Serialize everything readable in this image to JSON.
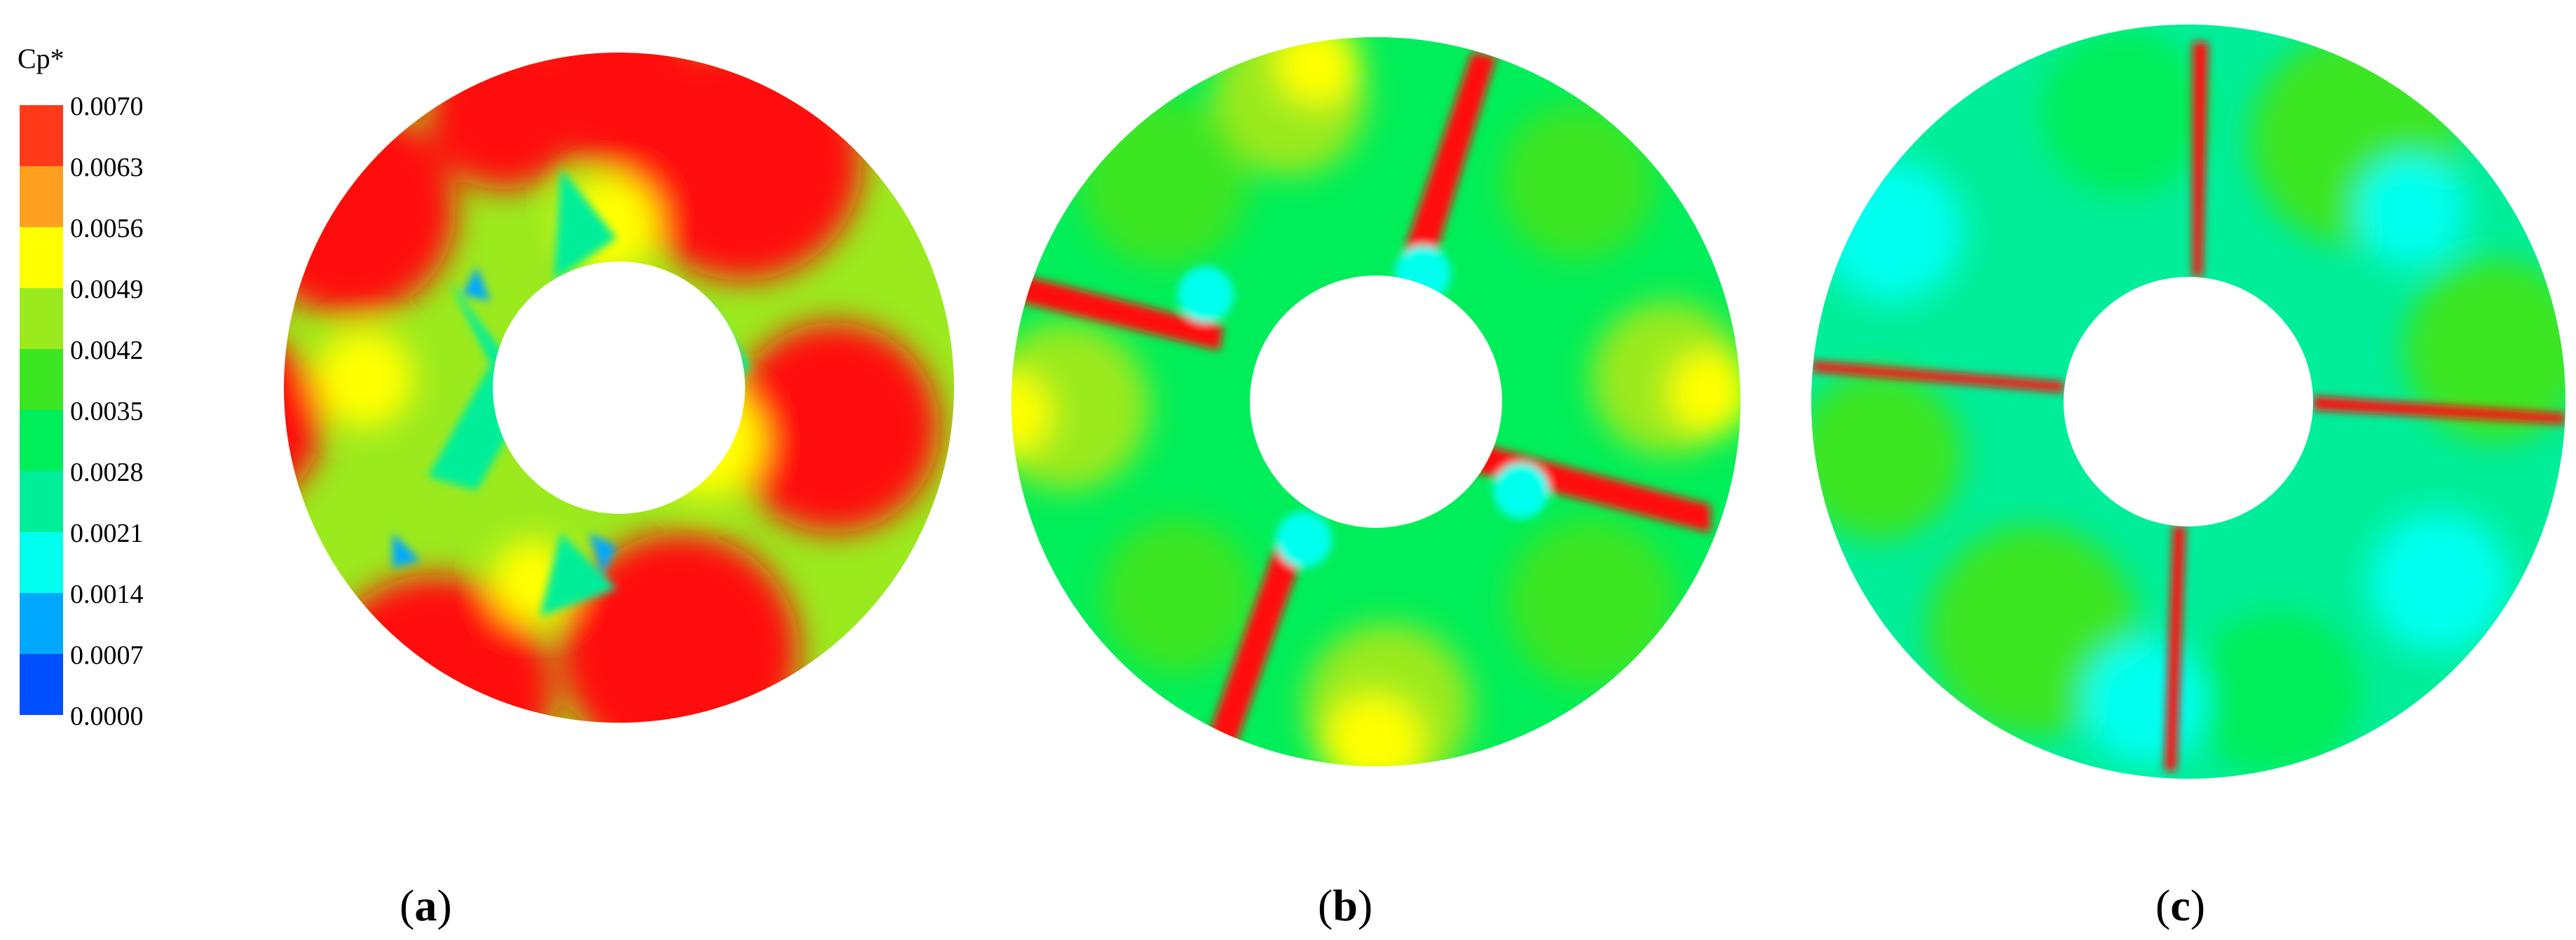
{
  "legend": {
    "title": "Cp*",
    "ticks": [
      "0.0070",
      "0.0063",
      "0.0056",
      "0.0049",
      "0.0042",
      "0.0035",
      "0.0028",
      "0.0021",
      "0.0014",
      "0.0007",
      "0.0000"
    ],
    "colors": [
      "#ff3a1a",
      "#ffa020",
      "#ffff00",
      "#9bea1e",
      "#3ce622",
      "#00ee5a",
      "#00ee9a",
      "#00ffee",
      "#00a8ff",
      "#0050ff"
    ]
  },
  "palette": {
    "red": "#ff0d0d",
    "yellow": "#ffff00",
    "yellow_green": "#9bea1e",
    "green": "#3ce622",
    "spring_green": "#00ee5a",
    "aqua_green": "#00ee9a",
    "cyan": "#00ffee",
    "blue": "#00a8ff"
  },
  "panels": [
    {
      "id": "a",
      "label_open": "(",
      "label_letter": "a",
      "label_close": ")"
    },
    {
      "id": "b",
      "label_open": "(",
      "label_letter": "b",
      "label_close": ")"
    },
    {
      "id": "c",
      "label_open": "(",
      "label_letter": "c",
      "label_close": ")"
    }
  ]
}
